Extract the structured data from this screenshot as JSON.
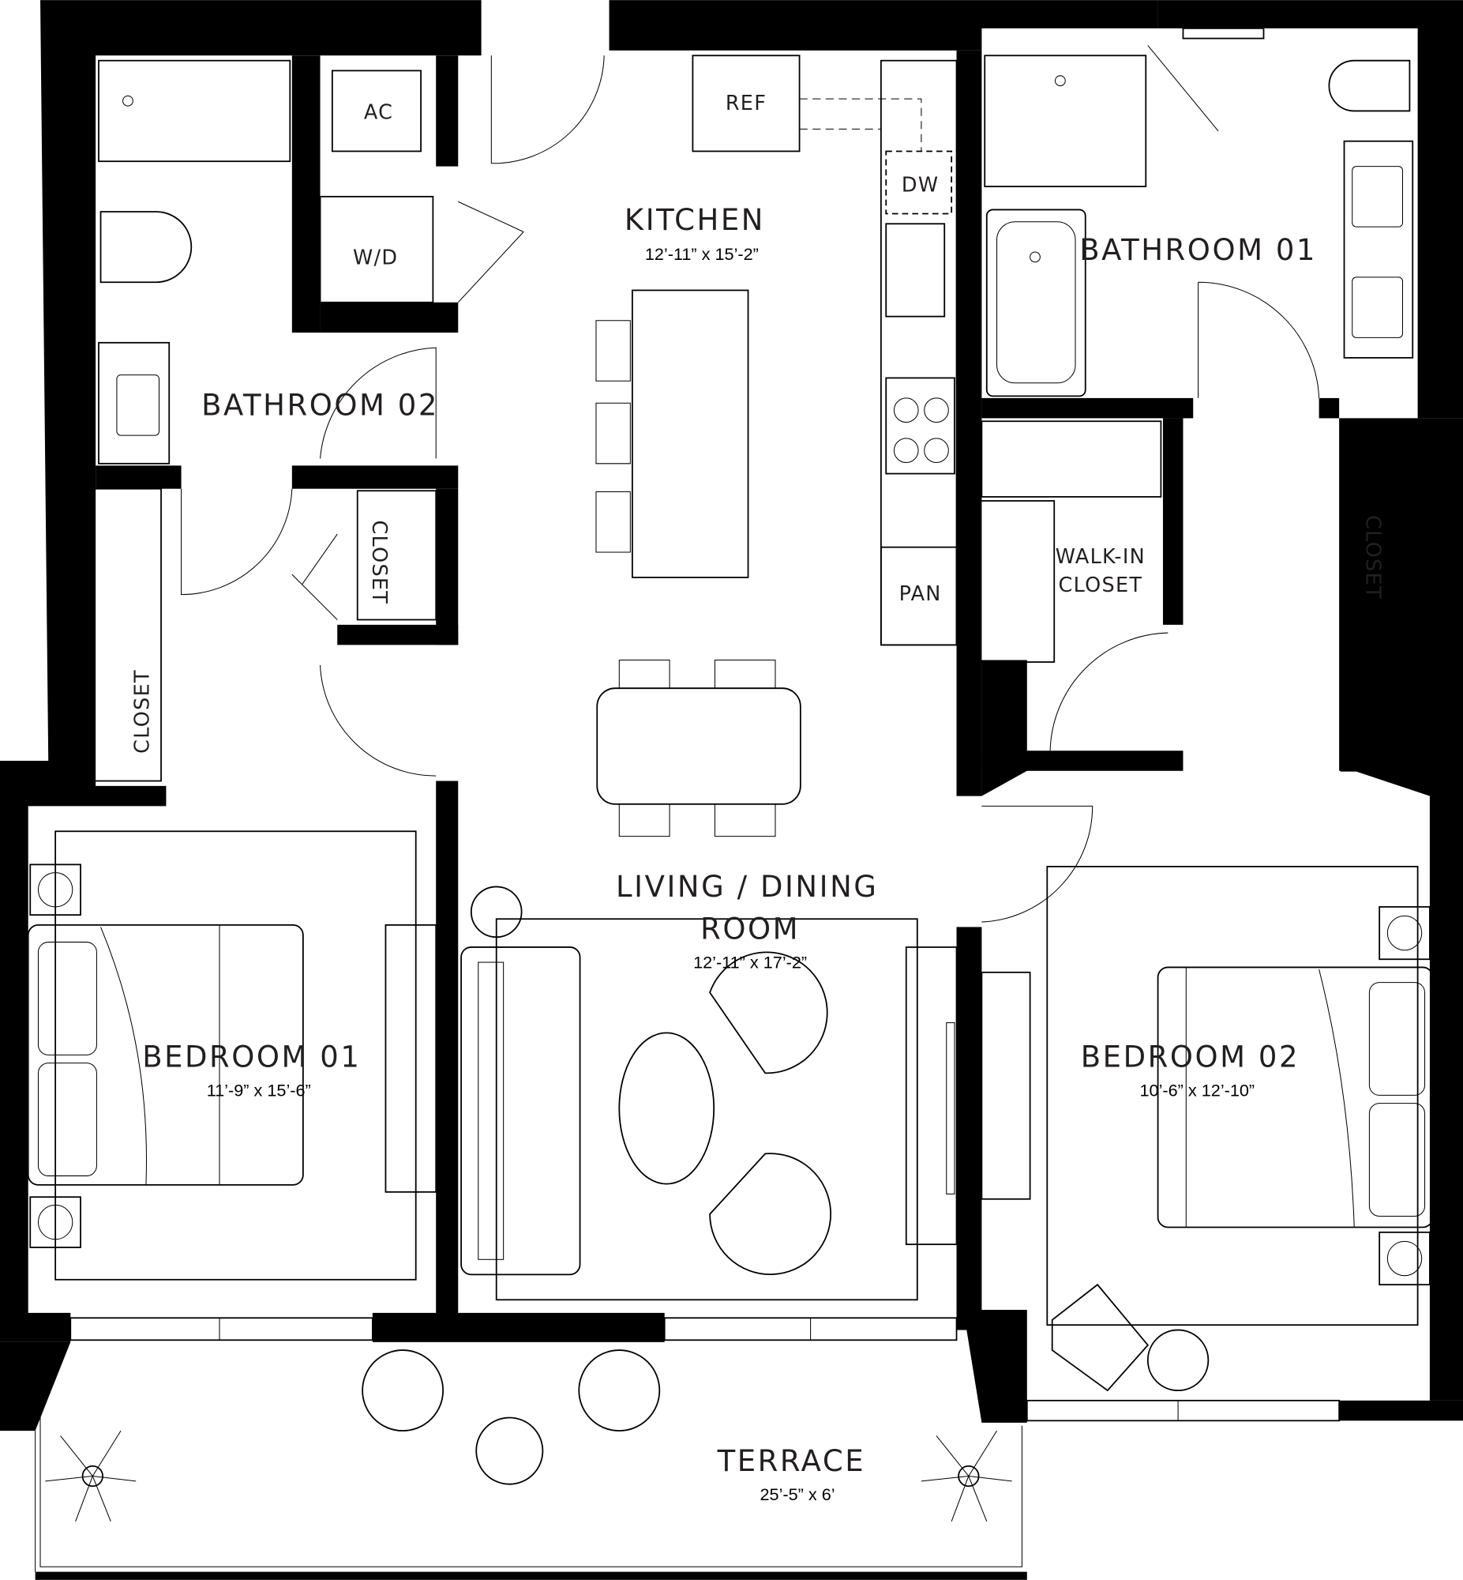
{
  "rooms": {
    "kitchen": {
      "name": "KITCHEN",
      "dims": "12’-11” x 15’-2”"
    },
    "bathroom01": {
      "name": "BATHROOM 01"
    },
    "bathroom02": {
      "name": "BATHROOM 02"
    },
    "living": {
      "name_line1": "LIVING / DINING",
      "name_line2": "ROOM",
      "dims": "12’-11” x 17’-2”"
    },
    "bedroom01": {
      "name": "BEDROOM 01",
      "dims": "11’-9” x 15’-6”"
    },
    "bedroom02": {
      "name": "BEDROOM 02",
      "dims": "10’-6” x 12’-10”"
    },
    "walkin": {
      "line1": "WALK-IN",
      "line2": "CLOSET"
    },
    "terrace": {
      "name": "TERRACE",
      "dims": "25’-5” x 6’"
    }
  },
  "fixtures": {
    "ac": "AC",
    "wd": "W/D",
    "ref": "REF",
    "dw": "DW",
    "pan": "PAN",
    "closet": "CLOSET"
  },
  "colors": {
    "wall": "#000000",
    "background": "#ffffff",
    "text": "#231f20"
  }
}
